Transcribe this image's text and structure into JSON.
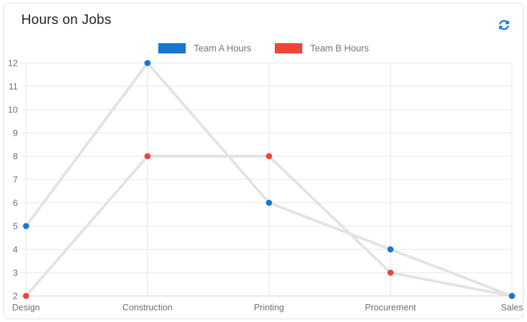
{
  "card": {
    "title": "Hours on Jobs"
  },
  "legend": {
    "items": [
      {
        "label": "Team A Hours",
        "color": "#1976d2"
      },
      {
        "label": "Team B Hours",
        "color": "#f44336"
      }
    ]
  },
  "colors": {
    "accent": "#1976d2",
    "grid_line": "#e6e6e6",
    "axis_base_line": "#cccccc",
    "series_line": "#e3e3e3",
    "axis_label": "#6e6e6e",
    "title_text": "#212529",
    "card_border": "#e0e0e0"
  },
  "chart_data": {
    "type": "line",
    "title": "Hours on Jobs",
    "categories": [
      "Design",
      "Construction",
      "Printing",
      "Procurement",
      "Sales"
    ],
    "series": [
      {
        "name": "Team A Hours",
        "color": "#1976d2",
        "values": [
          5,
          12,
          6,
          4,
          2
        ]
      },
      {
        "name": "Team B Hours",
        "color": "#f44336",
        "values": [
          2,
          8,
          8,
          3,
          2
        ]
      }
    ],
    "ylim": [
      2,
      12
    ],
    "ytick_step": 1,
    "yticks": [
      2,
      3,
      4,
      5,
      6,
      7,
      8,
      9,
      10,
      11,
      12
    ],
    "grid": true,
    "legend_position": "top",
    "line_style": "gray-connectors-with-colored-points",
    "xlabel": "",
    "ylabel": ""
  }
}
